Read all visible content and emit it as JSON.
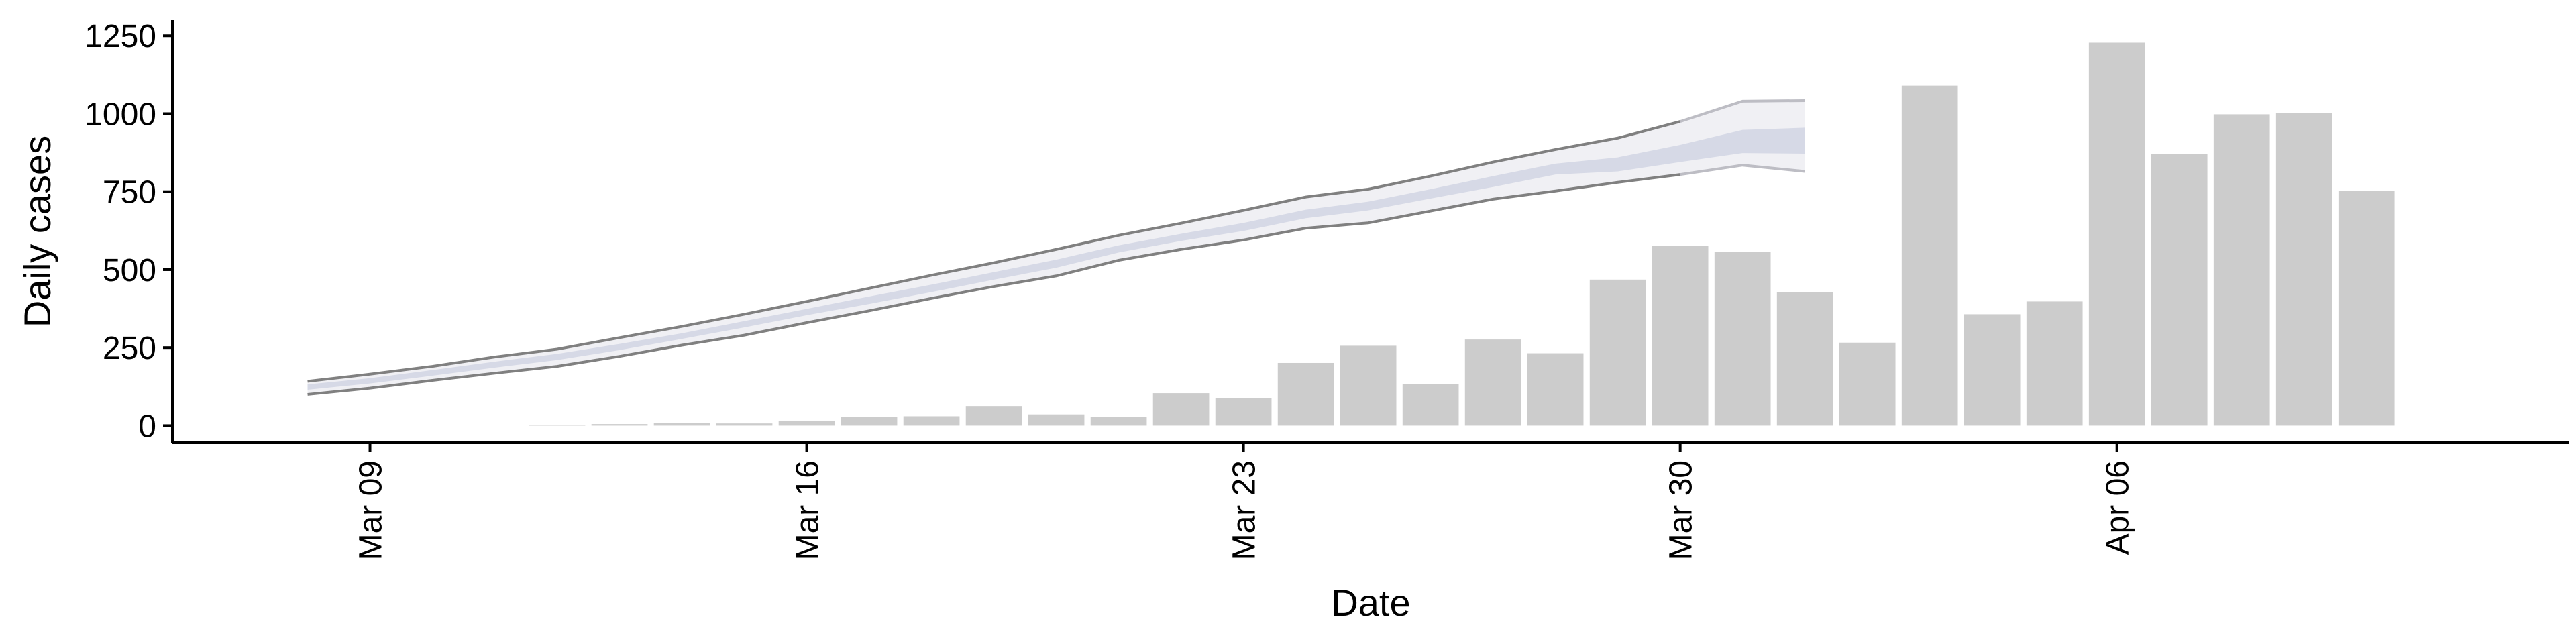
{
  "chart_data": {
    "type": "bar",
    "xlabel": "Date",
    "ylabel": "Daily cases",
    "x_ticks": [
      "Mar 09",
      "Mar 16",
      "Mar 23",
      "Mar 30",
      "Apr 06"
    ],
    "y_ticks": [
      "0",
      "250",
      "500",
      "750",
      "1000",
      "1250"
    ],
    "ylim": [
      -55,
      1300
    ],
    "xlim": [
      "2020-03-05 20:00",
      "2020-04-13 06:00"
    ],
    "grid": false,
    "legend": "none",
    "bars": {
      "dates": [
        "2020-03-12",
        "2020-03-13",
        "2020-03-14",
        "2020-03-15",
        "2020-03-16",
        "2020-03-17",
        "2020-03-18",
        "2020-03-19",
        "2020-03-20",
        "2020-03-21",
        "2020-03-22",
        "2020-03-23",
        "2020-03-24",
        "2020-03-25",
        "2020-03-26",
        "2020-03-27",
        "2020-03-28",
        "2020-03-29",
        "2020-03-30",
        "2020-03-31",
        "2020-04-01",
        "2020-04-02",
        "2020-04-03",
        "2020-04-04",
        "2020-04-05",
        "2020-04-06",
        "2020-04-07",
        "2020-04-08",
        "2020-04-09",
        "2020-04-10"
      ],
      "values": [
        3,
        5,
        9,
        7,
        16,
        27,
        30,
        63,
        36,
        28,
        104,
        88,
        201,
        256,
        134,
        276,
        232,
        468,
        576,
        556,
        428,
        266,
        1090,
        357,
        398,
        1228,
        870,
        998,
        1003,
        752
      ],
      "color": "#cccccc"
    },
    "projection": {
      "dates": [
        "2020-03-08",
        "2020-03-09",
        "2020-03-10",
        "2020-03-11",
        "2020-03-12",
        "2020-03-13",
        "2020-03-14",
        "2020-03-15",
        "2020-03-16",
        "2020-03-17",
        "2020-03-18",
        "2020-03-19",
        "2020-03-20",
        "2020-03-21",
        "2020-03-22",
        "2020-03-23",
        "2020-03-24",
        "2020-03-25",
        "2020-03-26",
        "2020-03-27",
        "2020-03-28",
        "2020-03-29",
        "2020-03-30",
        "2020-03-31",
        "2020-04-01"
      ],
      "outer_upper": [
        142,
        165,
        190,
        220,
        245,
        282,
        318,
        357,
        398,
        440,
        482,
        522,
        565,
        610,
        649,
        690,
        733,
        758,
        800,
        845,
        885,
        922,
        975,
        1040,
        1042
      ],
      "outer_lower": [
        100,
        120,
        145,
        168,
        190,
        222,
        258,
        290,
        330,
        368,
        408,
        446,
        480,
        530,
        565,
        595,
        633,
        650,
        688,
        726,
        752,
        780,
        805,
        835,
        815
      ],
      "inner_upper": [
        132,
        152,
        178,
        205,
        230,
        262,
        296,
        335,
        374,
        414,
        452,
        492,
        532,
        578,
        615,
        650,
        692,
        718,
        758,
        800,
        840,
        860,
        900,
        948,
        955
      ],
      "inner_lower": [
        115,
        135,
        160,
        186,
        210,
        242,
        278,
        315,
        354,
        390,
        428,
        468,
        506,
        555,
        592,
        624,
        665,
        690,
        728,
        765,
        805,
        815,
        845,
        874,
        872
      ],
      "outer_color": "#f0f0f4",
      "inner_color": "#d6d9e6",
      "line_color": "#808080",
      "dashed_from": "2020-03-30"
    }
  }
}
